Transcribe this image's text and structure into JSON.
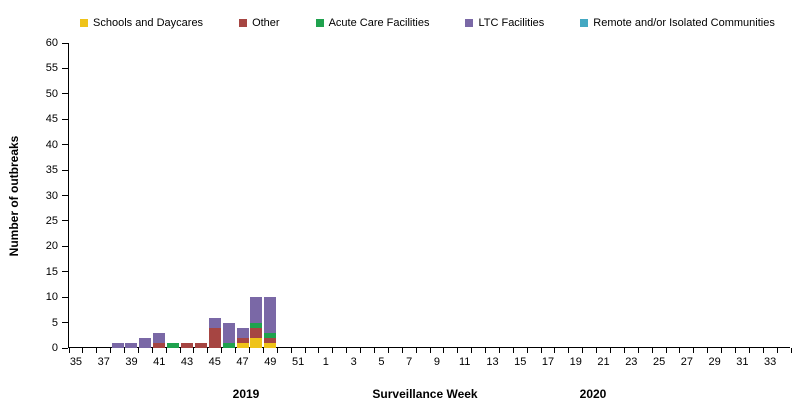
{
  "chart_data": {
    "type": "bar",
    "subtype": "stacked",
    "title": "",
    "xlabel": "Surveillance Week",
    "ylabel": "Number of outbreaks",
    "ylim": [
      0,
      60
    ],
    "ytick_step": 5,
    "grid": false,
    "legend_position": "top",
    "year_labels": {
      "left": "2019",
      "right": "2020"
    },
    "categories": [
      "35",
      "36",
      "37",
      "38",
      "39",
      "40",
      "41",
      "42",
      "43",
      "44",
      "45",
      "46",
      "47",
      "48",
      "49",
      "50",
      "51",
      "52",
      "1",
      "2",
      "3",
      "4",
      "5",
      "6",
      "7",
      "8",
      "9",
      "10",
      "11",
      "12",
      "13",
      "14",
      "15",
      "16",
      "17",
      "18",
      "19",
      "20",
      "21",
      "22",
      "23",
      "24",
      "25",
      "26",
      "27",
      "28",
      "29",
      "30",
      "31",
      "32",
      "33",
      "34"
    ],
    "x_axis_labels_shown": [
      "35",
      "37",
      "39",
      "41",
      "43",
      "45",
      "47",
      "49",
      "51",
      "1",
      "3",
      "5",
      "7",
      "9",
      "11",
      "13",
      "15",
      "17",
      "19",
      "21",
      "23",
      "25",
      "27",
      "29",
      "31",
      "33"
    ],
    "series": [
      {
        "name": "Schools and Daycares",
        "color": "#EFC319",
        "values": {
          "47": 1,
          "48": 2,
          "49": 1
        }
      },
      {
        "name": "Other",
        "color": "#A64542",
        "values": {
          "41": 1,
          "43": 1,
          "44": 1,
          "45": 4,
          "47": 1,
          "48": 2,
          "49": 1
        }
      },
      {
        "name": "Acute Care Facilities",
        "color": "#1FA24E",
        "values": {
          "42": 1,
          "46": 1,
          "48": 1,
          "49": 1
        }
      },
      {
        "name": "LTC Facilities",
        "color": "#7A68A6",
        "values": {
          "38": 1,
          "39": 1,
          "40": 2,
          "41": 2,
          "45": 2,
          "46": 4,
          "47": 2,
          "48": 5,
          "49": 7
        }
      },
      {
        "name": "Remote and/or Isolated Communities",
        "color": "#44A8C2",
        "values": {}
      }
    ],
    "axis_color": "#000000",
    "text_color": "#000000"
  }
}
